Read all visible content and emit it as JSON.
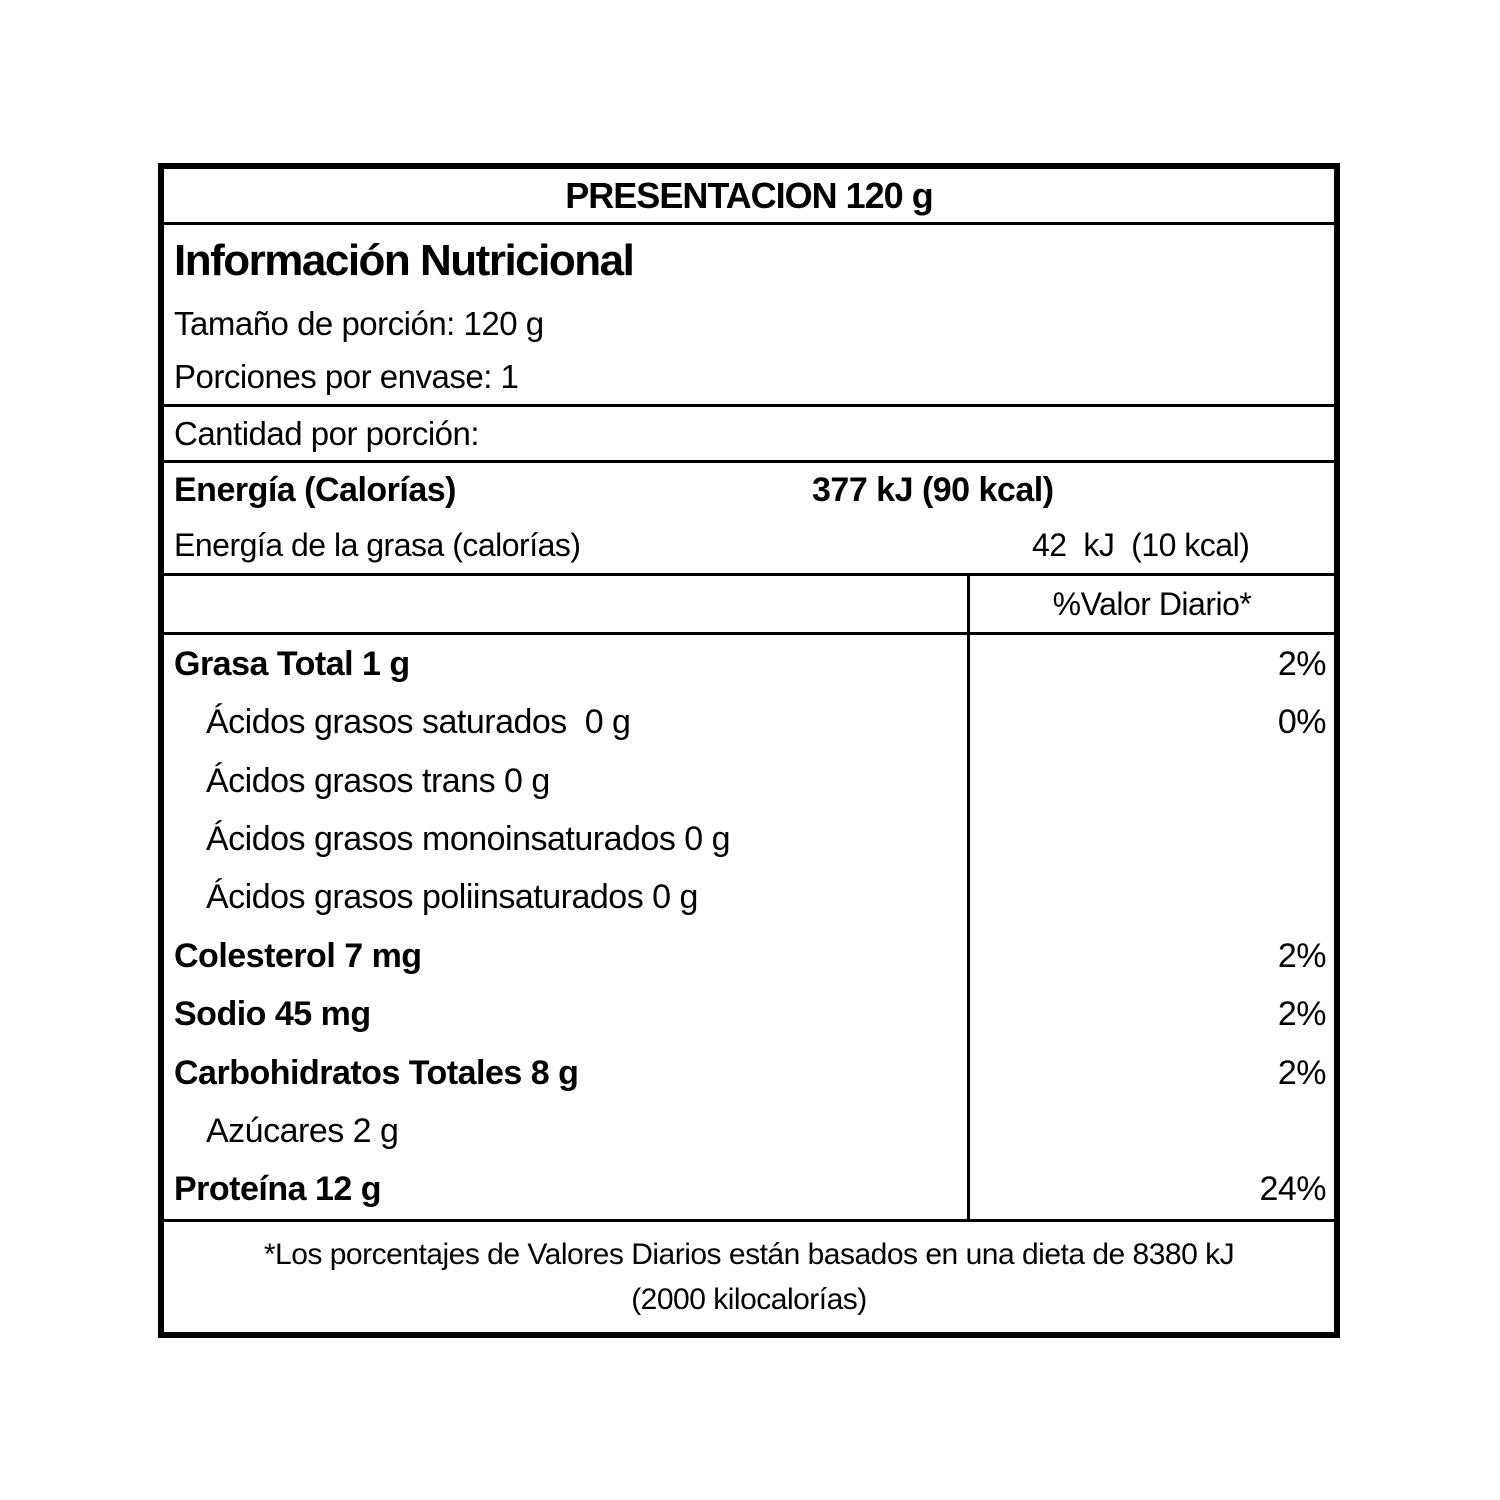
{
  "label": {
    "presentation": "PRESENTACION 120 g",
    "title": "Información Nutricional",
    "serving_size": "Tamaño de porción: 120 g",
    "servings_per_container": "Porciones por envase: 1",
    "amount_per_serving": "Cantidad por porción:",
    "energy": {
      "label": "Energía (Calorías)",
      "value": "377 kJ (90 kcal)"
    },
    "energy_fat": {
      "label": "Energía de la grasa (calorías)",
      "value": "42  kJ  (10 kcal)"
    },
    "daily_value_header": "%Valor Diario*",
    "nutrients": [
      {
        "label": "Grasa Total 1 g",
        "dv": "2%",
        "bold": true,
        "indent": false
      },
      {
        "label": "Ácidos grasos saturados  0 g",
        "dv": "0%",
        "bold": false,
        "indent": true
      },
      {
        "label": "Ácidos grasos trans 0 g",
        "dv": "",
        "bold": false,
        "indent": true
      },
      {
        "label": "Ácidos grasos monoinsaturados 0 g",
        "dv": "",
        "bold": false,
        "indent": true
      },
      {
        "label": "Ácidos grasos poliinsaturados 0 g",
        "dv": "",
        "bold": false,
        "indent": true
      },
      {
        "label": "Colesterol 7 mg",
        "dv": "2%",
        "bold": true,
        "indent": false
      },
      {
        "label": "Sodio 45 mg",
        "dv": "2%",
        "bold": true,
        "indent": false
      },
      {
        "label": "Carbohidratos Totales 8 g",
        "dv": "2%",
        "bold": true,
        "indent": false
      },
      {
        "label": "Azúcares 2 g",
        "dv": "",
        "bold": false,
        "indent": true
      },
      {
        "label": "Proteína 12 g",
        "dv": "24%",
        "bold": true,
        "indent": false
      }
    ],
    "footnote_line1": "*Los porcentajes de Valores Diarios están basados en una dieta de 8380 kJ",
    "footnote_line2": "(2000 kilocalorías)",
    "colors": {
      "border": "#000000",
      "background": "#ffffff",
      "text": "#000000"
    }
  }
}
